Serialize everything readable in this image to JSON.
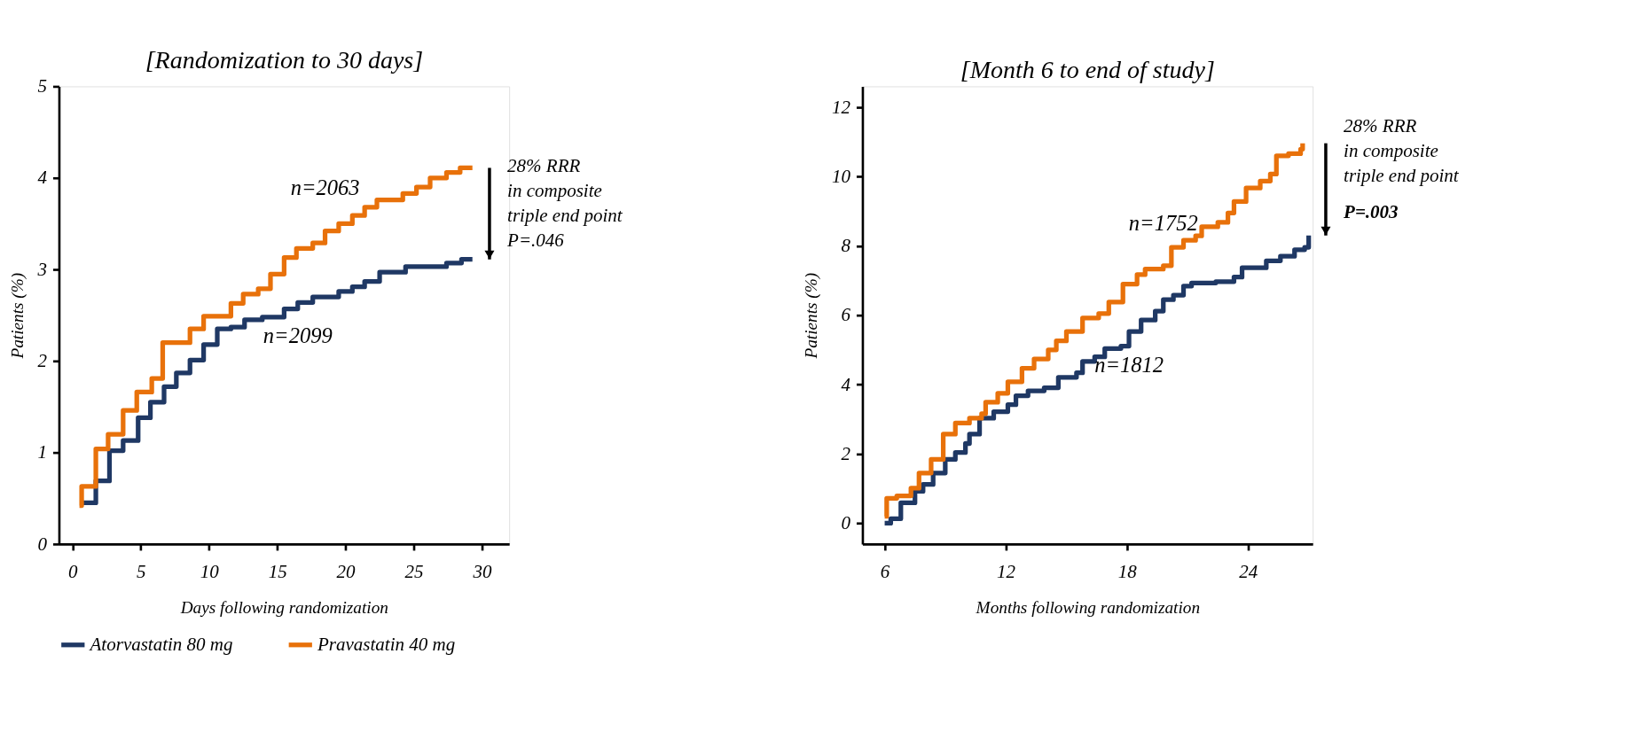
{
  "chart_data": [
    {
      "type": "step",
      "title": "[Randomization to 30 days]",
      "xlabel": "Days following randomization",
      "ylabel": "Patients (%)",
      "xlim": [
        -1,
        32
      ],
      "ylim": [
        0,
        5
      ],
      "xticks": [
        0,
        5,
        10,
        15,
        20,
        25,
        30
      ],
      "yticks": [
        0,
        1,
        2,
        3,
        4,
        5
      ],
      "grid": false,
      "legend": "bottom",
      "marker": "none",
      "line_style": "solid",
      "series": [
        {
          "name": "Atorvastatin 80 mg",
          "color": "#1f3864",
          "x": [
            0.66,
            1.7,
            2.7,
            3.7,
            4.8,
            5.7,
            6.7,
            7.6,
            8.6,
            9.6,
            10.6,
            11.6,
            12.6,
            13.9,
            15.5,
            16.5,
            17.6,
            19.5,
            20.5,
            21.4,
            22.5,
            24.4,
            27.4,
            28.5,
            29.3
          ],
          "values": [
            0.45,
            0.69,
            1.02,
            1.13,
            1.38,
            1.55,
            1.72,
            1.87,
            2.01,
            2.18,
            2.35,
            2.37,
            2.45,
            2.48,
            2.57,
            2.64,
            2.7,
            2.76,
            2.81,
            2.87,
            2.97,
            3.03,
            3.07,
            3.11,
            3.11
          ]
        },
        {
          "name": "Pravastatin 40 mg",
          "color": "#e8710a",
          "x": [
            0.5,
            0.66,
            1.7,
            2.6,
            3.7,
            4.7,
            5.8,
            6.6,
            8.6,
            9.6,
            11.6,
            12.5,
            13.6,
            14.5,
            15.5,
            16.4,
            17.6,
            18.5,
            19.5,
            20.5,
            21.4,
            22.3,
            24.2,
            25.2,
            26.2,
            27.4,
            28.4,
            29.3
          ],
          "values": [
            0.42,
            0.63,
            1.04,
            1.2,
            1.46,
            1.66,
            1.81,
            2.2,
            2.35,
            2.49,
            2.63,
            2.73,
            2.79,
            2.95,
            3.13,
            3.23,
            3.29,
            3.42,
            3.5,
            3.59,
            3.68,
            3.76,
            3.83,
            3.9,
            4.0,
            4.06,
            4.11,
            4.11
          ]
        }
      ],
      "annotations": [
        "n=2099",
        "n=2063",
        "28% RRR\nin composite\ntriple end point\nP=.046"
      ]
    },
    {
      "type": "step",
      "title": "[Month 6 to end of study]",
      "xlabel": "Months following randomization",
      "ylabel": "Patients (%)",
      "xlim": [
        4.9,
        27.2
      ],
      "ylim": [
        -0.6,
        12.6
      ],
      "xticks": [
        6,
        12,
        18,
        24
      ],
      "yticks": [
        0,
        2,
        4,
        6,
        8,
        10,
        12
      ],
      "grid": false,
      "legend": "bottom",
      "marker": "none",
      "line_style": "solid",
      "series": [
        {
          "name": "Atorvastatin 80 mg",
          "color": "#1f3864",
          "x": [
            6.0,
            6.3,
            6.8,
            7.5,
            7.9,
            8.4,
            9.0,
            9.5,
            10.0,
            10.2,
            10.7,
            11.4,
            12.1,
            12.5,
            13.1,
            13.9,
            14.6,
            15.5,
            15.8,
            16.4,
            16.9,
            17.7,
            18.1,
            18.7,
            19.4,
            19.8,
            20.3,
            20.8,
            21.2,
            22.4,
            23.3,
            23.7,
            24.9,
            25.6,
            26.3,
            26.8,
            27.0
          ],
          "values": [
            0,
            0.13,
            0.59,
            0.92,
            1.12,
            1.45,
            1.84,
            2.04,
            2.3,
            2.57,
            3.03,
            3.22,
            3.42,
            3.68,
            3.82,
            3.91,
            4.21,
            4.34,
            4.67,
            4.8,
            5.04,
            5.11,
            5.53,
            5.86,
            6.12,
            6.45,
            6.58,
            6.84,
            6.93,
            6.97,
            7.1,
            7.37,
            7.57,
            7.7,
            7.89,
            7.96,
            8.3
          ]
        },
        {
          "name": "Pravastatin 40 mg",
          "color": "#e8710a",
          "x": [
            6.0,
            6.1,
            6.6,
            7.3,
            7.7,
            8.3,
            8.9,
            9.5,
            10.2,
            10.8,
            11.0,
            11.6,
            12.1,
            12.8,
            13.4,
            14.1,
            14.5,
            15.0,
            15.8,
            16.6,
            17.1,
            17.8,
            18.5,
            18.9,
            19.8,
            20.2,
            20.8,
            21.4,
            21.7,
            22.5,
            23.0,
            23.3,
            23.9,
            24.6,
            25.1,
            25.4,
            26.0,
            26.6,
            26.7
          ],
          "values": [
            0.2,
            0.72,
            0.79,
            1.01,
            1.45,
            1.84,
            2.57,
            2.89,
            3.03,
            3.16,
            3.49,
            3.75,
            4.08,
            4.47,
            4.74,
            5.0,
            5.26,
            5.53,
            5.92,
            6.05,
            6.38,
            6.9,
            7.17,
            7.33,
            7.43,
            7.96,
            8.16,
            8.29,
            8.55,
            8.68,
            8.95,
            9.28,
            9.67,
            9.87,
            10.07,
            10.6,
            10.66,
            10.79,
            10.96
          ]
        }
      ],
      "annotations": [
        "n=1812",
        "n=1752",
        "28% RRR\nin composite\ntriple end point",
        "P=.003"
      ]
    }
  ]
}
